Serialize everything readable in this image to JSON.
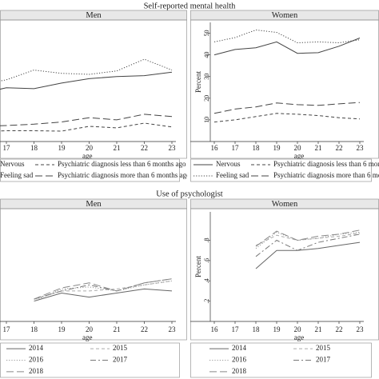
{
  "headings": [
    "Self-reported mental health",
    "Use of psychologist"
  ],
  "chart_data": [
    {
      "type": "line",
      "title": "Men",
      "xlabel": "age",
      "x": [
        16,
        17,
        18,
        19,
        20,
        21,
        22,
        23
      ],
      "xlim": [
        16,
        23
      ],
      "xticks": [
        17,
        18,
        19,
        20,
        21,
        22,
        23
      ],
      "ylim": [
        0,
        55
      ],
      "series": [
        {
          "name": "Nervous",
          "color": "#444",
          "dash": "solid",
          "values": [
            22,
            24.8,
            24.4,
            27,
            29,
            30,
            30.4,
            32
          ]
        },
        {
          "name": "Psychiatric diagnosis less than 6 months ago",
          "color": "#444",
          "dash": "shortdash",
          "values": [
            4.5,
            5,
            5,
            4.8,
            7,
            6.3,
            8.5,
            6.7
          ]
        },
        {
          "name": "Feeling sad",
          "color": "#444",
          "dash": "dotted",
          "values": [
            26,
            28.5,
            33,
            31.5,
            31,
            32.6,
            38,
            33
          ]
        },
        {
          "name": "Psychiatric diagnosis more than 6 months ago",
          "color": "#444",
          "dash": "longdash",
          "values": [
            7,
            7.4,
            8,
            9,
            11,
            10,
            12.6,
            11.5
          ]
        }
      ]
    },
    {
      "type": "line",
      "title": "Women",
      "xlabel": "age",
      "ylabel": "Percent",
      "x": [
        16,
        17,
        18,
        19,
        20,
        21,
        22,
        23
      ],
      "xlim": [
        16,
        23
      ],
      "xticks": [
        16,
        17,
        18,
        19,
        20,
        21,
        22,
        23
      ],
      "ylim": [
        0,
        55
      ],
      "yticks": [
        10,
        20,
        30,
        40,
        50
      ],
      "series": [
        {
          "name": "Nervous",
          "color": "#444",
          "dash": "solid",
          "values": [
            40,
            42.5,
            43.3,
            46,
            40.7,
            41,
            44,
            47.8
          ]
        },
        {
          "name": "Psychiatric diagnosis less than 6 months ago",
          "color": "#444",
          "dash": "shortdash",
          "values": [
            9,
            10,
            11.5,
            13,
            12.6,
            12,
            11,
            10.4
          ]
        },
        {
          "name": "Feeling sad",
          "color": "#444",
          "dash": "dotted",
          "values": [
            46,
            48,
            51.5,
            50.4,
            45.6,
            46,
            45.6,
            47
          ]
        },
        {
          "name": "Psychiatric diagnosis more than 6 months ago",
          "color": "#444",
          "dash": "longdash",
          "values": [
            13,
            15,
            16,
            17.8,
            17,
            16.7,
            17.4,
            18
          ]
        }
      ]
    },
    {
      "type": "line",
      "title": "Men",
      "xlabel": "age",
      "x": [
        18,
        19,
        20,
        21,
        22,
        23
      ],
      "xlim": [
        16,
        23
      ],
      "xticks": [
        17,
        18,
        19,
        20,
        21,
        22,
        23
      ],
      "ylim": [
        0,
        1.08
      ],
      "series": [
        {
          "name": "2014",
          "color": "#666",
          "dash": "solid",
          "values": [
            0.2,
            0.28,
            0.24,
            0.28,
            0.32,
            0.3
          ]
        },
        {
          "name": "2015",
          "color": "#aaa",
          "dash": "shortdash",
          "values": [
            0.22,
            0.3,
            0.3,
            0.32,
            0.36,
            0.4
          ]
        },
        {
          "name": "2016",
          "color": "#999",
          "dash": "dotted",
          "values": [
            0.2,
            0.32,
            0.34,
            0.3,
            0.36,
            0.4
          ]
        },
        {
          "name": "2017",
          "color": "#777",
          "dash": "dashdot",
          "values": [
            0.22,
            0.3,
            0.36,
            0.3,
            0.38,
            0.42
          ]
        },
        {
          "name": "2018",
          "color": "#888",
          "dash": "longdash",
          "values": [
            0.22,
            0.33,
            0.38,
            0.3,
            0.38,
            0.42
          ]
        }
      ]
    },
    {
      "type": "line",
      "title": "Women",
      "xlabel": "age",
      "ylabel": "Percent",
      "x": [
        18,
        19,
        20,
        21,
        22,
        23
      ],
      "xlim": [
        16,
        23
      ],
      "xticks": [
        16,
        17,
        18,
        19,
        20,
        21,
        22,
        23
      ],
      "ylim": [
        0,
        1.08
      ],
      "yticks": [
        {
          "value": 0.2,
          "label": ".2"
        },
        {
          "value": 0.4,
          "label": ".4"
        },
        {
          "value": 0.6,
          "label": ".6"
        },
        {
          "value": 0.8,
          "label": ".8"
        }
      ],
      "series": [
        {
          "name": "2014",
          "color": "#666",
          "dash": "solid",
          "values": [
            0.52,
            0.7,
            0.7,
            0.72,
            0.75,
            0.78
          ]
        },
        {
          "name": "2015",
          "color": "#aaa",
          "dash": "shortdash",
          "values": [
            0.75,
            0.85,
            0.8,
            0.82,
            0.84,
            0.87
          ]
        },
        {
          "name": "2016",
          "color": "#999",
          "dash": "dotted",
          "values": [
            0.72,
            0.88,
            0.8,
            0.82,
            0.86,
            0.88
          ]
        },
        {
          "name": "2017",
          "color": "#777",
          "dash": "dashdot",
          "values": [
            0.64,
            0.8,
            0.7,
            0.78,
            0.82,
            0.86
          ]
        },
        {
          "name": "2018",
          "color": "#888",
          "dash": "longdash",
          "values": [
            0.74,
            0.89,
            0.8,
            0.84,
            0.86,
            0.9
          ]
        }
      ]
    }
  ]
}
